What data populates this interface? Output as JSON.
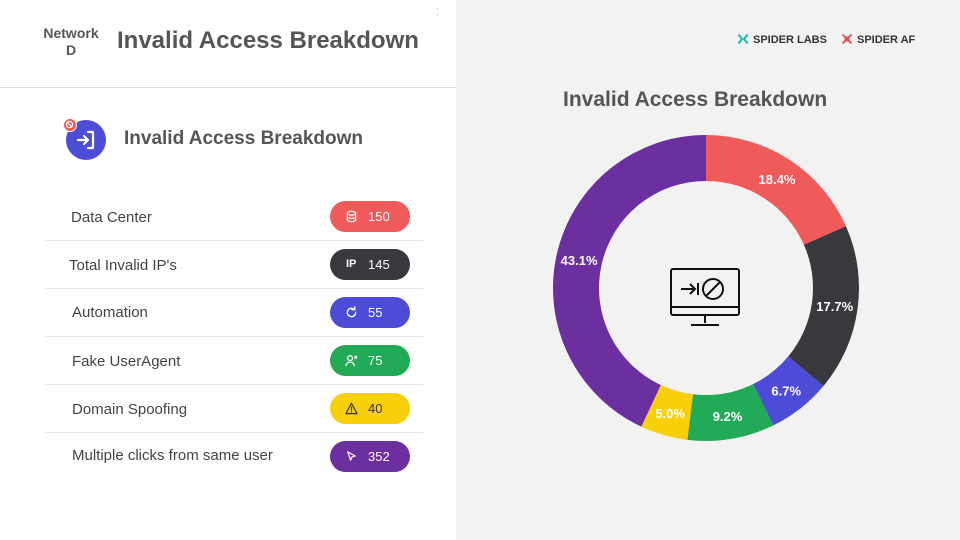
{
  "header": {
    "network_line1": "Network",
    "network_line2": "D",
    "title": "Invalid Access Breakdown"
  },
  "section": {
    "title": "Invalid Access Breakdown",
    "icon": "sign-in-icon",
    "badge_icon": "blocked-icon"
  },
  "rows": [
    {
      "label": "Data Center",
      "value": "150",
      "icon": "database-icon",
      "color": "#ef5a5a"
    },
    {
      "label": "Total Invalid IP's",
      "value": "145",
      "icon": "ip-icon",
      "icon_text": "IP",
      "color": "#38383d"
    },
    {
      "label": "Automation",
      "value": "55",
      "icon": "refresh-icon",
      "color": "#4d4cd6"
    },
    {
      "label": "Fake UserAgent",
      "value": "75",
      "icon": "user-x-icon",
      "color": "#23aa56"
    },
    {
      "label": "Domain Spoofing",
      "value": "40",
      "icon": "warning-icon",
      "color": "#f7cf0b"
    },
    {
      "label": "Multiple clicks from same user",
      "value": "352",
      "icon": "cursor-icon",
      "color": "#6c2fa0"
    }
  ],
  "brands": {
    "labs": "SPIDER LABS",
    "af": "SPIDER AF",
    "labs_color": "#1fb8a6",
    "af_color": "#e5484d"
  },
  "chart_data": {
    "type": "pie",
    "title": "Invalid Access Breakdown",
    "donut": true,
    "center_icon": "blocked-monitor-icon",
    "slices": [
      {
        "label": "18.4%",
        "value": 18.4,
        "color": "#ef5a5a"
      },
      {
        "label": "17.7%",
        "value": 17.7,
        "color": "#38383d"
      },
      {
        "label": "6.7%",
        "value": 6.7,
        "color": "#4d4cd6"
      },
      {
        "label": "9.2%",
        "value": 9.2,
        "color": "#23aa56"
      },
      {
        "label": "5.0%",
        "value": 5.0,
        "color": "#f7cf0b"
      },
      {
        "label": "43.1%",
        "value": 43.1,
        "color": "#6c2fa0"
      }
    ]
  }
}
